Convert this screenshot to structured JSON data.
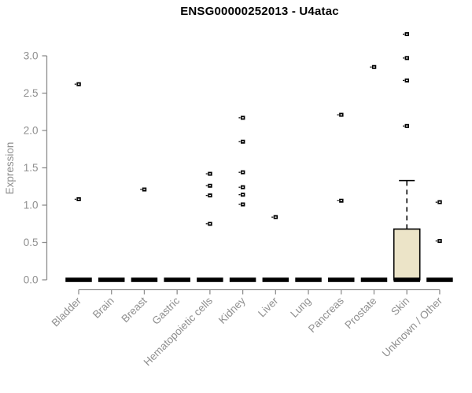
{
  "chart_data": {
    "type": "boxplot",
    "title": "ENSG00000252013 - U4atac",
    "ylabel": "Expression",
    "xlabel": "",
    "yticks": [
      0.0,
      0.5,
      1.0,
      1.5,
      2.0,
      2.5,
      3.0
    ],
    "ylim": [
      0,
      3.3
    ],
    "grid": false,
    "legend": false,
    "categories": [
      "Bladder",
      "Brain",
      "Breast",
      "Gastric",
      "Hematopoietic cells",
      "Kidney",
      "Liver",
      "Lung",
      "Pancreas",
      "Prostate",
      "Skin",
      "Unknown / Other"
    ],
    "groups": [
      {
        "name": "Bladder",
        "median": 0,
        "q1": 0,
        "q3": 0,
        "whisker_low": 0,
        "whisker_high": 0,
        "outliers": [
          1.08,
          2.62
        ]
      },
      {
        "name": "Brain",
        "median": 0,
        "q1": 0,
        "q3": 0,
        "whisker_low": 0,
        "whisker_high": 0,
        "outliers": []
      },
      {
        "name": "Breast",
        "median": 0,
        "q1": 0,
        "q3": 0,
        "whisker_low": 0,
        "whisker_high": 0,
        "outliers": [
          1.21
        ]
      },
      {
        "name": "Gastric",
        "median": 0,
        "q1": 0,
        "q3": 0,
        "whisker_low": 0,
        "whisker_high": 0,
        "outliers": []
      },
      {
        "name": "Hematopoietic cells",
        "median": 0,
        "q1": 0,
        "q3": 0,
        "whisker_low": 0,
        "whisker_high": 0,
        "outliers": [
          0.75,
          1.13,
          1.26,
          1.42
        ]
      },
      {
        "name": "Kidney",
        "median": 0,
        "q1": 0,
        "q3": 0,
        "whisker_low": 0,
        "whisker_high": 0,
        "outliers": [
          1.01,
          1.14,
          1.24,
          1.44,
          1.85,
          2.17
        ]
      },
      {
        "name": "Liver",
        "median": 0,
        "q1": 0,
        "q3": 0,
        "whisker_low": 0,
        "whisker_high": 0,
        "outliers": [
          0.84
        ]
      },
      {
        "name": "Lung",
        "median": 0,
        "q1": 0,
        "q3": 0,
        "whisker_low": 0,
        "whisker_high": 0,
        "outliers": []
      },
      {
        "name": "Pancreas",
        "median": 0,
        "q1": 0,
        "q3": 0,
        "whisker_low": 0,
        "whisker_high": 0,
        "outliers": [
          1.06,
          2.21
        ]
      },
      {
        "name": "Prostate",
        "median": 0,
        "q1": 0,
        "q3": 0,
        "whisker_low": 0,
        "whisker_high": 0,
        "outliers": [
          2.85
        ]
      },
      {
        "name": "Skin",
        "median": 0,
        "q1": 0,
        "q3": 0.68,
        "whisker_low": 0,
        "whisker_high": 1.33,
        "outliers": [
          2.06,
          2.67,
          2.97,
          3.29
        ]
      },
      {
        "name": "Unknown / Other",
        "median": 0,
        "q1": 0,
        "q3": 0,
        "whisker_low": 0,
        "whisker_high": 0,
        "outliers": [
          0.52,
          1.04
        ]
      }
    ],
    "colors": {
      "title": "#000000",
      "axis": "#8f8f8f",
      "marker": "#000000",
      "median_bar": "#000000",
      "box_fill": "#ece4c8",
      "box_stroke": "#000000",
      "background": "#ffffff"
    }
  }
}
